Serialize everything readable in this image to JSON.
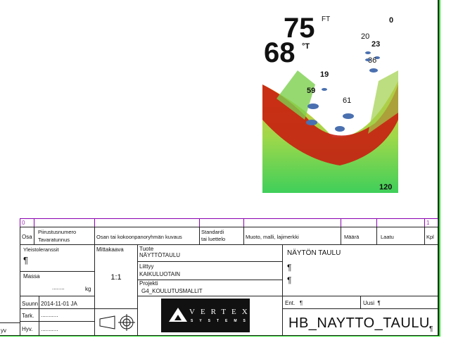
{
  "sonar": {
    "depth": "75",
    "depth_unit": "FT",
    "temp": "68",
    "temp_unit": "°T",
    "scale_top": "0",
    "scale_bottom": "120",
    "fish_depths": [
      "20",
      "23",
      "36",
      "19",
      "59",
      "61"
    ]
  },
  "title_block": {
    "rev_left": "0",
    "rev_right": "1",
    "headers": {
      "osa": "Osa",
      "drawing_no": "Piirustusnumero",
      "item_code": "Tavaratunnus",
      "description": "Osan tai kokoonpanoryhmän kuvaus",
      "standard": "Standardi",
      "standard2": "tai luettelo",
      "shape": "Muoto, malli, lajimerkki",
      "quantity": "Määrä",
      "quality": "Laatu",
      "pcs": "Kpl"
    },
    "tolerances_label": "Yleistoleranssit",
    "tolerances_value": "¶",
    "mass_label": "Massa",
    "mass_value": "........",
    "mass_unit": "kg",
    "scale_label": "Mittakaava",
    "scale_value": "1:1",
    "product_label": "Tuote",
    "product_value": "NÄYTTÖTAULU",
    "related_label": "Liittyy",
    "related_value": "KAIKULUOTAIN",
    "project_label": "Projekti",
    "project_value": "G4_KOULUTUSMALLIT",
    "designed_label": "Suunn",
    "designed_value": "2014-11-01 JA",
    "checked_label": "Tark.",
    "checked_value": "...........",
    "approved_label": "Hyv.",
    "approved_value": "...........",
    "outside_label": "yv",
    "logo_text": "VERTEX",
    "logo_sub": "SYSTEMS",
    "name_line1": "NÄYTÖN TAULU",
    "name_line2": "¶",
    "name_line3": "¶",
    "prev_label": "Ent.",
    "prev_value": "¶",
    "new_label": "Uusi",
    "new_value": "¶",
    "drawing_id": "HB_NAYTTO_TAULU",
    "drawing_id_mark": "¶"
  }
}
